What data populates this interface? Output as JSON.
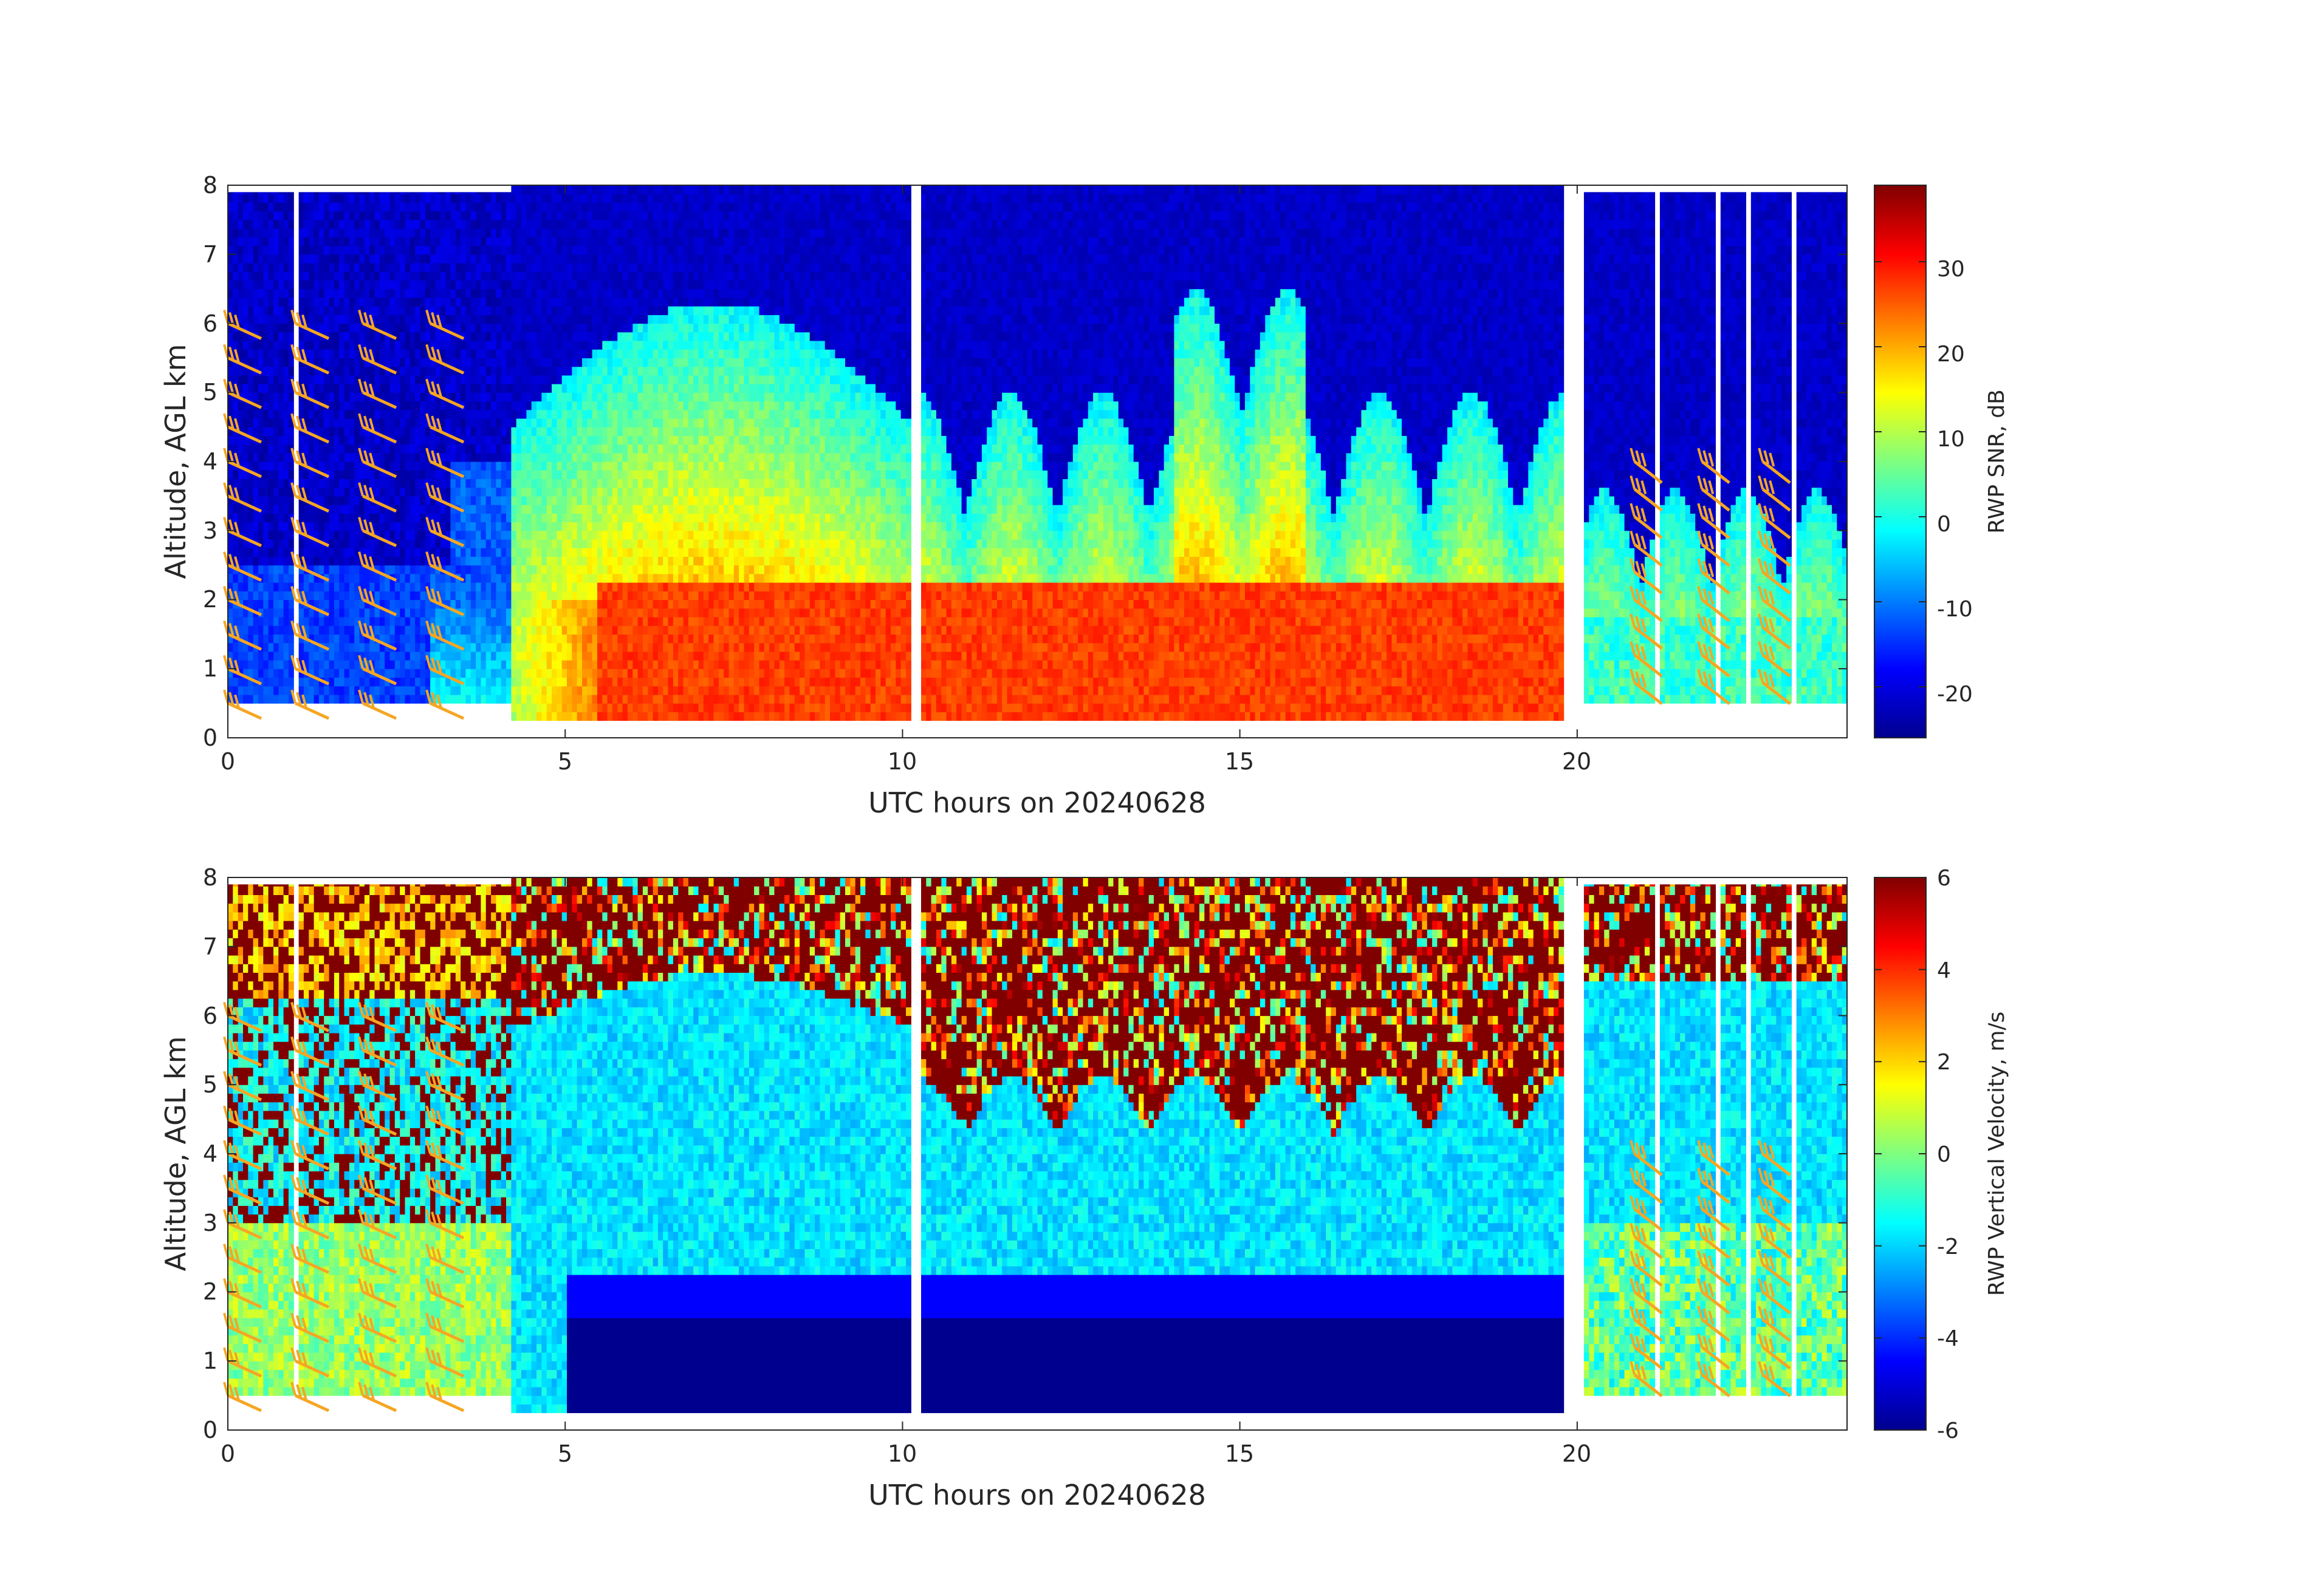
{
  "chart_data": [
    {
      "type": "heatmap",
      "panel": "top",
      "xlabel": "UTC hours on 20240628",
      "ylabel": "Altitude, AGL km",
      "xlim": [
        0,
        24
      ],
      "ylim": [
        0,
        8
      ],
      "xticks": [
        "0",
        "5",
        "10",
        "15",
        "20"
      ],
      "yticks": [
        "0",
        "1",
        "2",
        "3",
        "4",
        "5",
        "6",
        "7",
        "8"
      ],
      "colorbar": {
        "label": "RWP SNR, dB",
        "range": [
          -26,
          39
        ],
        "ticks": [
          "30",
          "20",
          "10",
          "0",
          "-10",
          "-20"
        ],
        "tick_values": [
          30,
          20,
          10,
          0,
          -10,
          -20
        ],
        "colormap": "jet"
      },
      "wind_barbs": {
        "color": "#f5a623",
        "hours": [
          0,
          1,
          2,
          3,
          21,
          22,
          23
        ]
      }
    },
    {
      "type": "heatmap",
      "panel": "bottom",
      "xlabel": "UTC hours on 20240628",
      "ylabel": "Altitude, AGL km",
      "xlim": [
        0,
        24
      ],
      "ylim": [
        0,
        8
      ],
      "xticks": [
        "0",
        "5",
        "10",
        "15",
        "20"
      ],
      "yticks": [
        "0",
        "1",
        "2",
        "3",
        "4",
        "5",
        "6",
        "7",
        "8"
      ],
      "colorbar": {
        "label": "RWP Vertical Velocity, m/s",
        "range": [
          -6,
          6
        ],
        "ticks": [
          "6",
          "4",
          "2",
          "0",
          "-2",
          "-4",
          "-6"
        ],
        "tick_values": [
          6,
          4,
          2,
          0,
          -2,
          -4,
          -6
        ],
        "colormap": "jet"
      },
      "wind_barbs": {
        "color": "#f5a623",
        "hours": [
          0,
          1,
          2,
          3,
          21,
          22,
          23
        ]
      }
    }
  ]
}
